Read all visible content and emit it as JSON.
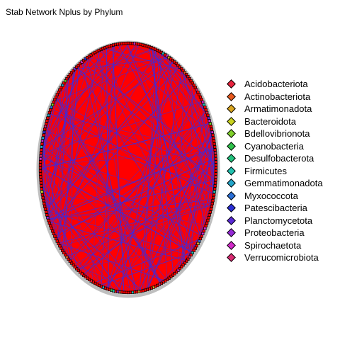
{
  "title": "Stab Network Nplus by Phylum",
  "network": {
    "fill_color": "#FF0000",
    "edge_color": "#3D2BDB",
    "node_outline_color": "#000000"
  },
  "legend": {
    "items": [
      {
        "label": "Acidobacteriota",
        "color": "#E8233E"
      },
      {
        "label": "Actinobacteriota",
        "color": "#E85A1E"
      },
      {
        "label": "Armatimonadota",
        "color": "#D9A520"
      },
      {
        "label": "Bacteroidota",
        "color": "#C9D320"
      },
      {
        "label": "Bdellovibrionota",
        "color": "#7FCF2A"
      },
      {
        "label": "Cyanobacteria",
        "color": "#2FC24B"
      },
      {
        "label": "Desulfobacterota",
        "color": "#22C27D"
      },
      {
        "label": "Firmicutes",
        "color": "#22C2B0"
      },
      {
        "label": "Gemmatimonadota",
        "color": "#23A5C9"
      },
      {
        "label": "Myxococcota",
        "color": "#2A6FD6"
      },
      {
        "label": "Patescibacteria",
        "color": "#2A2FD6"
      },
      {
        "label": "Planctomycetota",
        "color": "#5A2AD6"
      },
      {
        "label": "Proteobacteria",
        "color": "#952AD6"
      },
      {
        "label": "Spirochaetota",
        "color": "#D22AC9"
      },
      {
        "label": "Verrucomicrobiota",
        "color": "#D92A72"
      }
    ]
  }
}
